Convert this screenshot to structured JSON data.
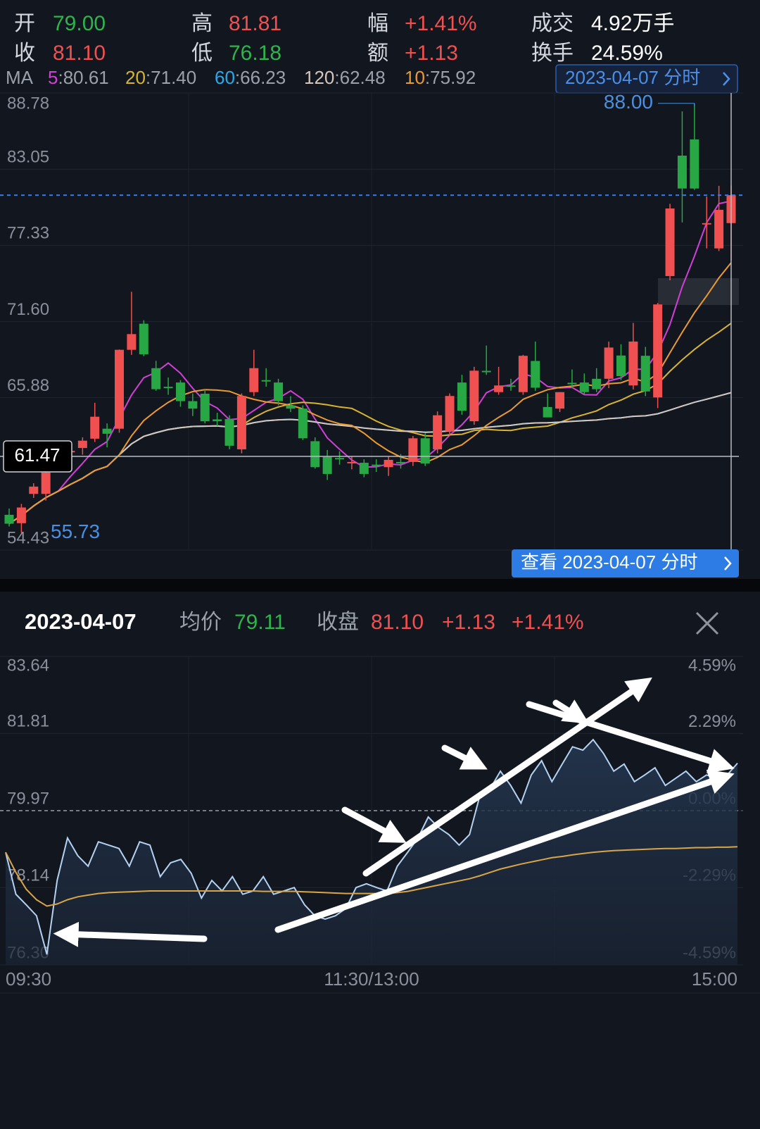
{
  "header": {
    "quotes": [
      [
        {
          "label": "开",
          "value": "79.00",
          "color": "#2db54b"
        },
        {
          "label": "高",
          "value": "81.81",
          "color": "#f0504f"
        },
        {
          "label": "幅",
          "value": "+1.41%",
          "color": "#f0504f"
        },
        {
          "label": "成交",
          "value": "4.92万手",
          "color": "#ffffff"
        }
      ],
      [
        {
          "label": "收",
          "value": "81.10",
          "color": "#f0504f"
        },
        {
          "label": "低",
          "value": "76.18",
          "color": "#2db54b"
        },
        {
          "label": "额",
          "value": "+1.13",
          "color": "#f0504f"
        },
        {
          "label": "换手",
          "value": "24.59%",
          "color": "#ffffff"
        }
      ]
    ],
    "ma": {
      "title": "MA",
      "sep": ":",
      "items": [
        {
          "period": "5",
          "value": "80.61",
          "color": "#d23fd8"
        },
        {
          "period": "20",
          "value": "71.40",
          "color": "#d9b431"
        },
        {
          "period": "60",
          "value": "66.23",
          "color": "#2ba9ea"
        },
        {
          "period": "120",
          "value": "62.48",
          "color": "#d6c6bd"
        },
        {
          "period": "10",
          "value": "75.92",
          "color": "#ec9a30"
        }
      ]
    },
    "date_button": "2023-04-07 分时",
    "view_button": "查看 2023-04-07 分时"
  },
  "chart_data": [
    {
      "type": "candlestick",
      "ylim": [
        54.43,
        88.78
      ],
      "yticks": [
        88.78,
        83.05,
        77.33,
        {
          "value": 71.6,
          "label": "71.60"
        },
        65.88,
        54.43
      ],
      "up_color": "#f0504f",
      "down_color": "#27a844",
      "open": [
        57.08,
        56.45,
        58.65,
        58.65,
        60.75,
        61.85,
        62.1,
        62.8,
        63.55,
        63.55,
        69.48,
        71.44,
        68.1,
        66.7,
        67.02,
        65.62,
        66.18,
        64.25,
        64.28,
        62.0,
        66.3,
        67.2,
        67.02,
        65.3,
        65.06,
        62.61,
        61.43,
        61.35,
        61.05,
        60.99,
        60.85,
        60.66,
        61.05,
        61.05,
        62.83,
        62.0,
        63.35,
        67.02,
        64.11,
        67.9,
        66.3,
        66.8,
        66.3,
        68.64,
        65.18,
        65.06,
        67.0,
        67.02,
        67.3,
        67.3,
        69.05,
        66.8,
        69.03,
        65.9,
        75.02,
        84.07,
        85.29,
        78.9,
        77.1,
        79.0
      ],
      "high": [
        57.55,
        57.9,
        59.45,
        60.4,
        61.25,
        62.35,
        62.9,
        65.5,
        63.95,
        69.5,
        73.84,
        71.7,
        68.65,
        67.4,
        67.2,
        66.2,
        66.5,
        64.75,
        64.55,
        66.2,
        69.48,
        68.1,
        67.3,
        66.0,
        65.3,
        62.9,
        61.95,
        61.85,
        61.45,
        61.25,
        61.25,
        61.45,
        61.65,
        63.0,
        63.2,
        64.85,
        66.2,
        67.6,
        68.2,
        69.8,
        68.2,
        67.3,
        69.1,
        70.1,
        66.2,
        66.3,
        68.0,
        67.7,
        68.1,
        70.1,
        69.9,
        71.5,
        69.7,
        73.0,
        80.45,
        87.4,
        88.0,
        81.0,
        81.8,
        81.81
      ],
      "low": [
        56.2,
        55.73,
        58.35,
        58.15,
        60.35,
        61.45,
        61.6,
        62.55,
        62.15,
        63.25,
        69.1,
        69.0,
        66.4,
        66.1,
        65.2,
        64.5,
        63.95,
        63.75,
        62.0,
        61.7,
        66.0,
        66.7,
        65.3,
        64.8,
        62.7,
        60.55,
        59.7,
        60.85,
        60.5,
        59.9,
        60.3,
        60.0,
        60.55,
        60.75,
        60.75,
        61.7,
        63.05,
        64.6,
        63.85,
        67.6,
        66.1,
        66.4,
        66.1,
        66.4,
        64.7,
        64.8,
        66.6,
        66.1,
        66.3,
        66.6,
        67.2,
        66.5,
        66.0,
        65.1,
        74.7,
        79.05,
        81.5,
        77.1,
        76.9,
        76.18
      ],
      "close": [
        56.41,
        57.63,
        59.2,
        60.26,
        60.75,
        61.88,
        62.65,
        64.45,
        63.17,
        69.48,
        70.66,
        69.14,
        66.52,
        66.63,
        65.62,
        65.06,
        64.11,
        64.11,
        62.27,
        66.01,
        68.1,
        67.19,
        65.62,
        65.06,
        62.83,
        60.66,
        60.15,
        61.32,
        61.05,
        60.15,
        60.77,
        61.21,
        60.99,
        62.83,
        60.93,
        64.56,
        66.01,
        64.9,
        67.91,
        67.86,
        66.8,
        66.74,
        69.03,
        66.63,
        64.4,
        66.3,
        66.91,
        66.3,
        66.52,
        69.65,
        67.5,
        70.1,
        66.35,
        72.89,
        80.1,
        81.6,
        81.6,
        79.0,
        80.0,
        81.1
      ],
      "max_label": "88.00",
      "min_label": "55.73",
      "crosshair": 61.47,
      "last_price_color": "#3a7be0"
    },
    {
      "type": "line",
      "date": "2023-04-07",
      "avg_label": "均价",
      "avg_value": "79.11",
      "close_label": "收盘",
      "close_value": "81.10",
      "change": "+1.13",
      "change_pct": "+1.41%",
      "ylim": [
        76.3,
        83.64
      ],
      "yticks": [
        83.64,
        81.81,
        79.97,
        78.14,
        {
          "value": 76.3,
          "label": "76.30"
        }
      ],
      "y2lim": [
        -4.59,
        4.59
      ],
      "y2ticks": [
        {
          "value": 4.59,
          "label": "4.59%"
        },
        {
          "value": 2.29,
          "label": "2.29%"
        },
        {
          "value": 0,
          "label": "0.00%"
        },
        {
          "value": -2.29,
          "label": "-2.29%"
        },
        {
          "value": -4.59,
          "label": "-4.59%"
        }
      ],
      "x_labels": [
        "09:30",
        "11:30/13:00",
        "15:00"
      ],
      "series": [
        {
          "color": "#b4d2f2",
          "values": [
            78.98,
            77.98,
            77.73,
            77.47,
            76.55,
            78.31,
            79.32,
            78.9,
            78.65,
            79.23,
            79.15,
            79.07,
            78.65,
            79.23,
            79.15,
            78.4,
            78.73,
            78.81,
            78.48,
            77.89,
            78.31,
            78.06,
            78.4,
            77.98,
            78.06,
            78.4,
            77.98,
            78.06,
            78.14,
            77.73,
            77.47,
            77.39,
            77.47,
            77.64,
            78.14,
            78.23,
            78.14,
            78.06,
            78.65,
            78.98,
            79.32,
            79.82,
            79.57,
            79.4,
            79.15,
            79.4,
            80.32,
            80.49,
            80.91,
            80.57,
            80.15,
            80.82,
            81.16,
            80.66,
            81.08,
            81.49,
            81.41,
            81.66,
            81.33,
            80.91,
            81.08,
            80.66,
            80.82,
            80.99,
            80.57,
            80.74,
            80.91,
            80.66,
            80.82,
            80.74,
            80.82,
            81.1
          ]
        },
        {
          "color": "#d8a548",
          "values": [
            78.98,
            78.5,
            78.1,
            77.85,
            77.7,
            77.75,
            77.85,
            77.92,
            77.96,
            78.0,
            78.02,
            78.03,
            78.04,
            78.05,
            78.06,
            78.06,
            78.06,
            78.06,
            78.06,
            78.06,
            78.06,
            78.06,
            78.06,
            78.06,
            78.06,
            78.05,
            78.05,
            78.05,
            78.05,
            78.04,
            78.03,
            78.02,
            78.01,
            78.0,
            78.0,
            78.0,
            78.0,
            78.0,
            78.02,
            78.05,
            78.1,
            78.15,
            78.2,
            78.25,
            78.3,
            78.35,
            78.42,
            78.5,
            78.58,
            78.64,
            78.7,
            78.75,
            78.8,
            78.85,
            78.88,
            78.92,
            78.95,
            78.98,
            79.0,
            79.02,
            79.03,
            79.04,
            79.05,
            79.06,
            79.07,
            79.07,
            79.08,
            79.09,
            79.09,
            79.1,
            79.1,
            79.11
          ]
        }
      ]
    }
  ]
}
